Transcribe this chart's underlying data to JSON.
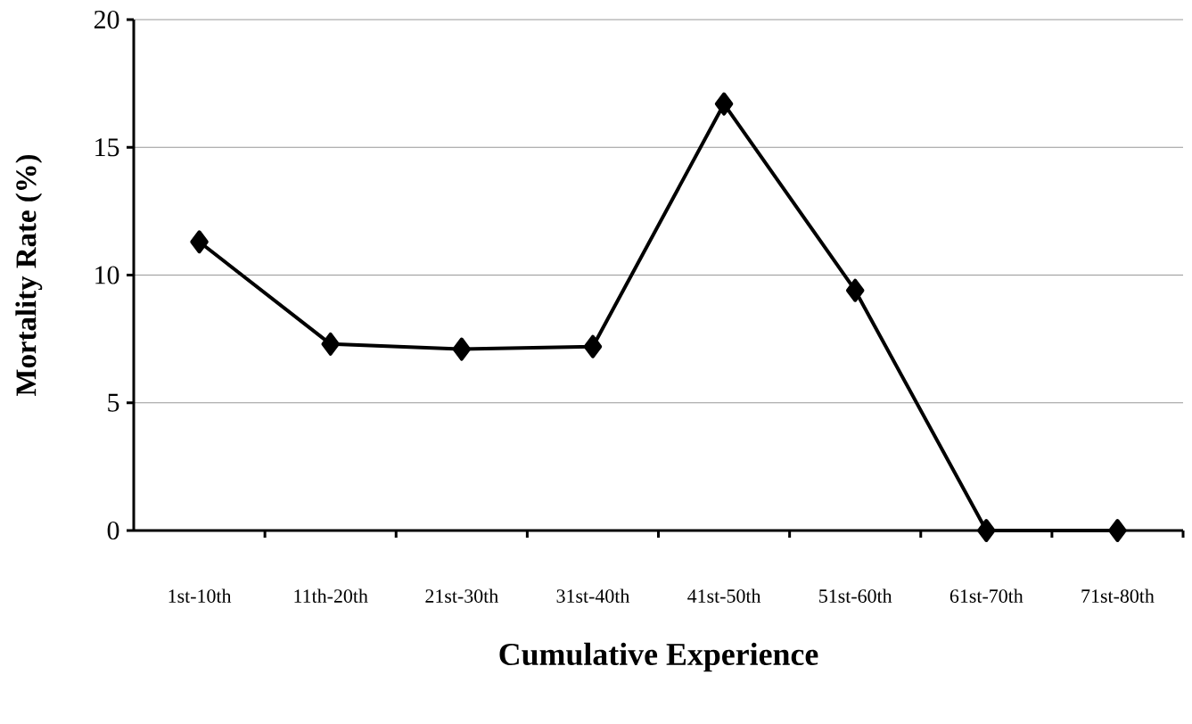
{
  "chart_data": {
    "type": "line",
    "xlabel": "Cumulative Experience",
    "ylabel": "Mortality Rate (%)",
    "categories": [
      "1st-10th",
      "11th-20th",
      "21st-30th",
      "31st-40th",
      "41st-50th",
      "51st-60th",
      "61st-70th",
      "71st-80th"
    ],
    "values": [
      11.3,
      7.3,
      7.1,
      7.2,
      16.7,
      9.4,
      0,
      0
    ],
    "color": "#000000",
    "ylim": [
      0,
      20
    ],
    "yticks": [
      0,
      5,
      10,
      15,
      20
    ],
    "grid": "y",
    "marker": "diamond",
    "line_style": "solid"
  }
}
